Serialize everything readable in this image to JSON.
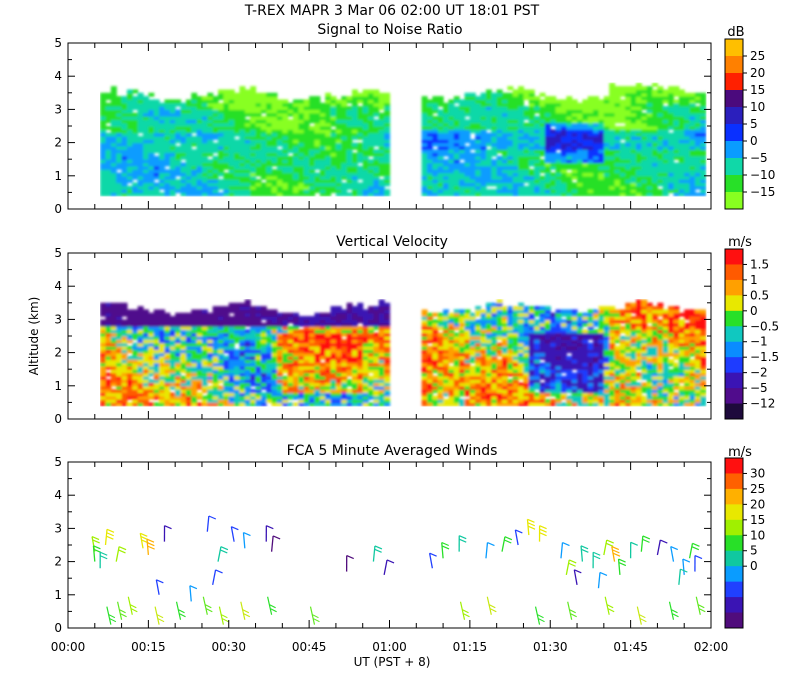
{
  "figure": {
    "title": "T-REX   MAPR   3 Mar 06   02:00 UT   18:01   PST",
    "x_label": "UT  (PST + 8)"
  },
  "chart_data": [
    {
      "type": "heatmap",
      "title": "Signal to Noise Ratio",
      "xlabel": "UT  (PST + 8)",
      "ylabel": "",
      "ylim": [
        0,
        5
      ],
      "xlim": [
        "00:00",
        "02:00"
      ],
      "y_ticks": [
        "0",
        "1",
        "2",
        "3",
        "4",
        "5"
      ],
      "colorbar_unit": "dB",
      "colorbar_labels": [
        "25",
        "20",
        "15",
        "10",
        "5",
        "0",
        "−5",
        "−10",
        "−15"
      ],
      "data_gap": [
        "01:00",
        "01:06"
      ],
      "echo_top_km": 3.4,
      "echo_bottom_km": 0.4,
      "palette": [
        "#ffbf00",
        "#ff8000",
        "#ff2000",
        "#4b0a7d",
        "#2b1fbd",
        "#0a30ff",
        "#0a9cff",
        "#10d8a8",
        "#28e028",
        "#88ff20"
      ]
    },
    {
      "type": "heatmap",
      "title": "Vertical Velocity",
      "xlabel": "UT  (PST + 8)",
      "ylabel": "Altitude (km)",
      "ylim": [
        0,
        5
      ],
      "xlim": [
        "00:00",
        "02:00"
      ],
      "y_ticks": [
        "0",
        "1",
        "2",
        "3",
        "4",
        "5"
      ],
      "colorbar_unit": "m/s",
      "colorbar_labels": [
        "1.5",
        "1",
        "0.5",
        "0",
        "−0.5",
        "−1",
        "−1.5",
        "−2",
        "−5",
        "−12"
      ],
      "data_gap": [
        "01:00",
        "01:06"
      ],
      "echo_top_km": 3.3,
      "echo_bottom_km": 0.4,
      "palette": [
        "#ff1010",
        "#ff5a00",
        "#ffa000",
        "#e8e800",
        "#28e028",
        "#10c8c0",
        "#0a8cff",
        "#1e3cff",
        "#3a14b4",
        "#500c8c",
        "#1e0a3c"
      ]
    },
    {
      "type": "scatter",
      "title": "FCA 5 Minute Averaged Winds",
      "xlabel": "UT  (PST + 8)",
      "ylabel": "",
      "ylim": [
        0,
        5
      ],
      "xlim": [
        "00:00",
        "02:00"
      ],
      "y_ticks": [
        "0",
        "1",
        "2",
        "3",
        "4",
        "5"
      ],
      "x_ticks": [
        "00:00",
        "00:15",
        "00:30",
        "00:45",
        "01:00",
        "01:15",
        "01:30",
        "01:45",
        "02:00"
      ],
      "colorbar_unit": "m/s",
      "colorbar_labels": [
        "30",
        "25",
        "20",
        "15",
        "10",
        "5",
        "0"
      ],
      "palette": [
        "#ff1010",
        "#ff6000",
        "#ffb000",
        "#e8e800",
        "#a0f000",
        "#28e028",
        "#10c8a0",
        "#0a9cff",
        "#2040ff",
        "#3a14b4",
        "#500c7c"
      ],
      "wind_barbs": [
        {
          "t": 5,
          "alt": 2.3,
          "speed": 18
        },
        {
          "t": 5,
          "alt": 2.0,
          "speed": 14
        },
        {
          "t": 6,
          "alt": 1.8,
          "speed": 12
        },
        {
          "t": 7,
          "alt": 2.5,
          "speed": 20
        },
        {
          "t": 9,
          "alt": 2.0,
          "speed": 17
        },
        {
          "t": 14,
          "alt": 2.4,
          "speed": 22
        },
        {
          "t": 15,
          "alt": 2.2,
          "speed": 24
        },
        {
          "t": 18,
          "alt": 2.6,
          "speed": 2
        },
        {
          "t": 26,
          "alt": 2.9,
          "speed": 5
        },
        {
          "t": 28,
          "alt": 2.0,
          "speed": 12
        },
        {
          "t": 31,
          "alt": 2.6,
          "speed": 7
        },
        {
          "t": 33,
          "alt": 2.4,
          "speed": 10
        },
        {
          "t": 37,
          "alt": 2.6,
          "speed": 3
        },
        {
          "t": 38,
          "alt": 2.3,
          "speed": 1
        },
        {
          "t": 27,
          "alt": 1.3,
          "speed": 6
        },
        {
          "t": 17,
          "alt": 1.0,
          "speed": 7
        },
        {
          "t": 23,
          "alt": 0.8,
          "speed": 8
        },
        {
          "t": 52,
          "alt": 1.7,
          "speed": 1
        },
        {
          "t": 57,
          "alt": 2.0,
          "speed": 12
        },
        {
          "t": 59,
          "alt": 1.6,
          "speed": 4
        },
        {
          "t": 68,
          "alt": 1.8,
          "speed": 6
        },
        {
          "t": 70,
          "alt": 2.1,
          "speed": 14
        },
        {
          "t": 73,
          "alt": 2.3,
          "speed": 13
        },
        {
          "t": 78,
          "alt": 2.1,
          "speed": 9
        },
        {
          "t": 81,
          "alt": 2.3,
          "speed": 15
        },
        {
          "t": 84,
          "alt": 2.5,
          "speed": 6
        },
        {
          "t": 86,
          "alt": 2.8,
          "speed": 21
        },
        {
          "t": 88,
          "alt": 2.6,
          "speed": 20
        },
        {
          "t": 92,
          "alt": 2.1,
          "speed": 10
        },
        {
          "t": 93,
          "alt": 1.6,
          "speed": 18
        },
        {
          "t": 95,
          "alt": 1.3,
          "speed": 4
        },
        {
          "t": 96,
          "alt": 2.0,
          "speed": 13
        },
        {
          "t": 98,
          "alt": 1.8,
          "speed": 12
        },
        {
          "t": 99,
          "alt": 1.2,
          "speed": 8
        },
        {
          "t": 100,
          "alt": 2.2,
          "speed": 17
        },
        {
          "t": 102,
          "alt": 2.0,
          "speed": 24
        },
        {
          "t": 103,
          "alt": 1.6,
          "speed": 15
        },
        {
          "t": 105,
          "alt": 2.1,
          "speed": 11
        },
        {
          "t": 107,
          "alt": 2.3,
          "speed": 14
        },
        {
          "t": 110,
          "alt": 2.2,
          "speed": 4
        },
        {
          "t": 113,
          "alt": 2.0,
          "speed": 10
        },
        {
          "t": 115,
          "alt": 1.6,
          "speed": 9
        },
        {
          "t": 117,
          "alt": 1.7,
          "speed": 7
        },
        {
          "t": 114,
          "alt": 1.3,
          "speed": 11
        },
        {
          "t": 116,
          "alt": 2.1,
          "speed": 15
        }
      ]
    }
  ]
}
